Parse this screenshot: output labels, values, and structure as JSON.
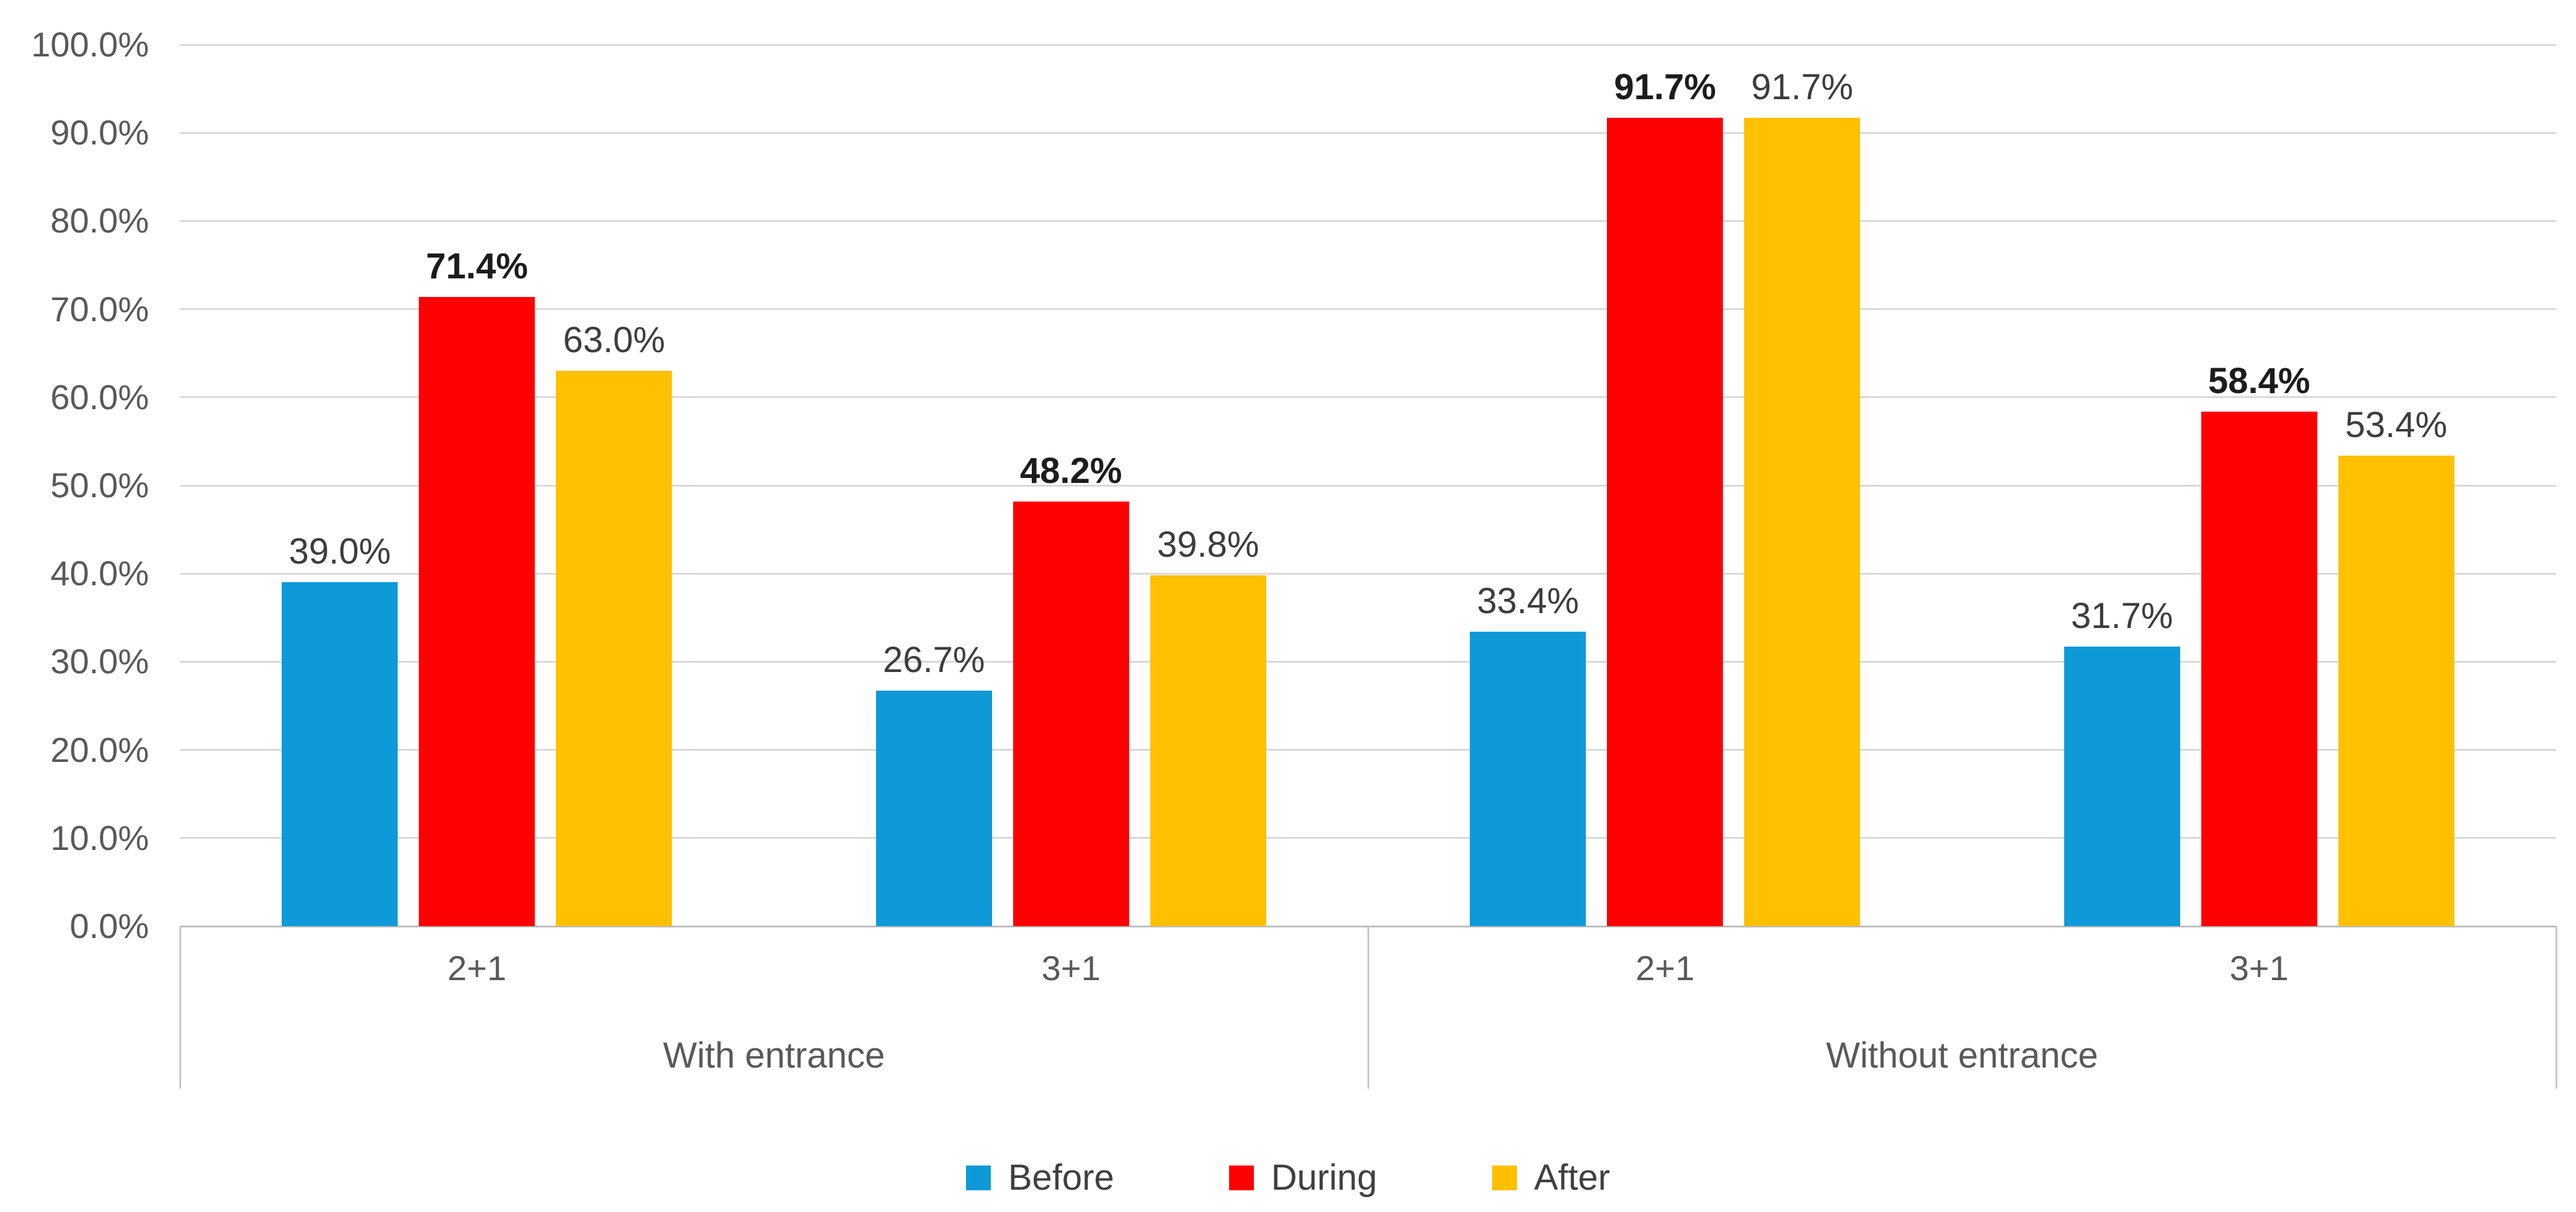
{
  "chart_data": {
    "type": "bar",
    "title": "",
    "categories": [
      "2+1",
      "3+1",
      "2+1",
      "3+1"
    ],
    "group_labels": [
      {
        "label": "With entrance",
        "start": 0,
        "end": 1
      },
      {
        "label": "Without entrance",
        "start": 2,
        "end": 3
      }
    ],
    "series": [
      {
        "name": "Before",
        "color": "#0E9AD8",
        "values": [
          39.0,
          26.7,
          33.4,
          31.7
        ],
        "data_labels": [
          "39.0%",
          "26.7%",
          "33.4%",
          "31.7%"
        ],
        "bold_labels": false
      },
      {
        "name": "During",
        "color": "#FF0000",
        "values": [
          71.4,
          48.2,
          91.7,
          58.4
        ],
        "data_labels": [
          "71.4%",
          "48.2%",
          "91.7%",
          "58.4%"
        ],
        "bold_labels": true
      },
      {
        "name": "After",
        "color": "#FFC000",
        "values": [
          63.0,
          39.8,
          91.7,
          53.4
        ],
        "data_labels": [
          "63.0%",
          "39.8%",
          "91.7%",
          "53.4%"
        ],
        "bold_labels": false
      }
    ],
    "y_axis": {
      "min": 0,
      "max": 100,
      "step": 10,
      "ticks": [
        "0.0%",
        "10.0%",
        "20.0%",
        "30.0%",
        "40.0%",
        "50.0%",
        "60.0%",
        "70.0%",
        "80.0%",
        "90.0%",
        "100.0%"
      ]
    },
    "legend": {
      "position": "bottom",
      "entries": [
        "Before",
        "During",
        "After"
      ]
    },
    "grid": true,
    "colors": {
      "gridline": "#D9D9D9",
      "axis_line": "#BFBFBF",
      "dropline": "#C8C8C8",
      "tick_text": "#595959"
    }
  }
}
